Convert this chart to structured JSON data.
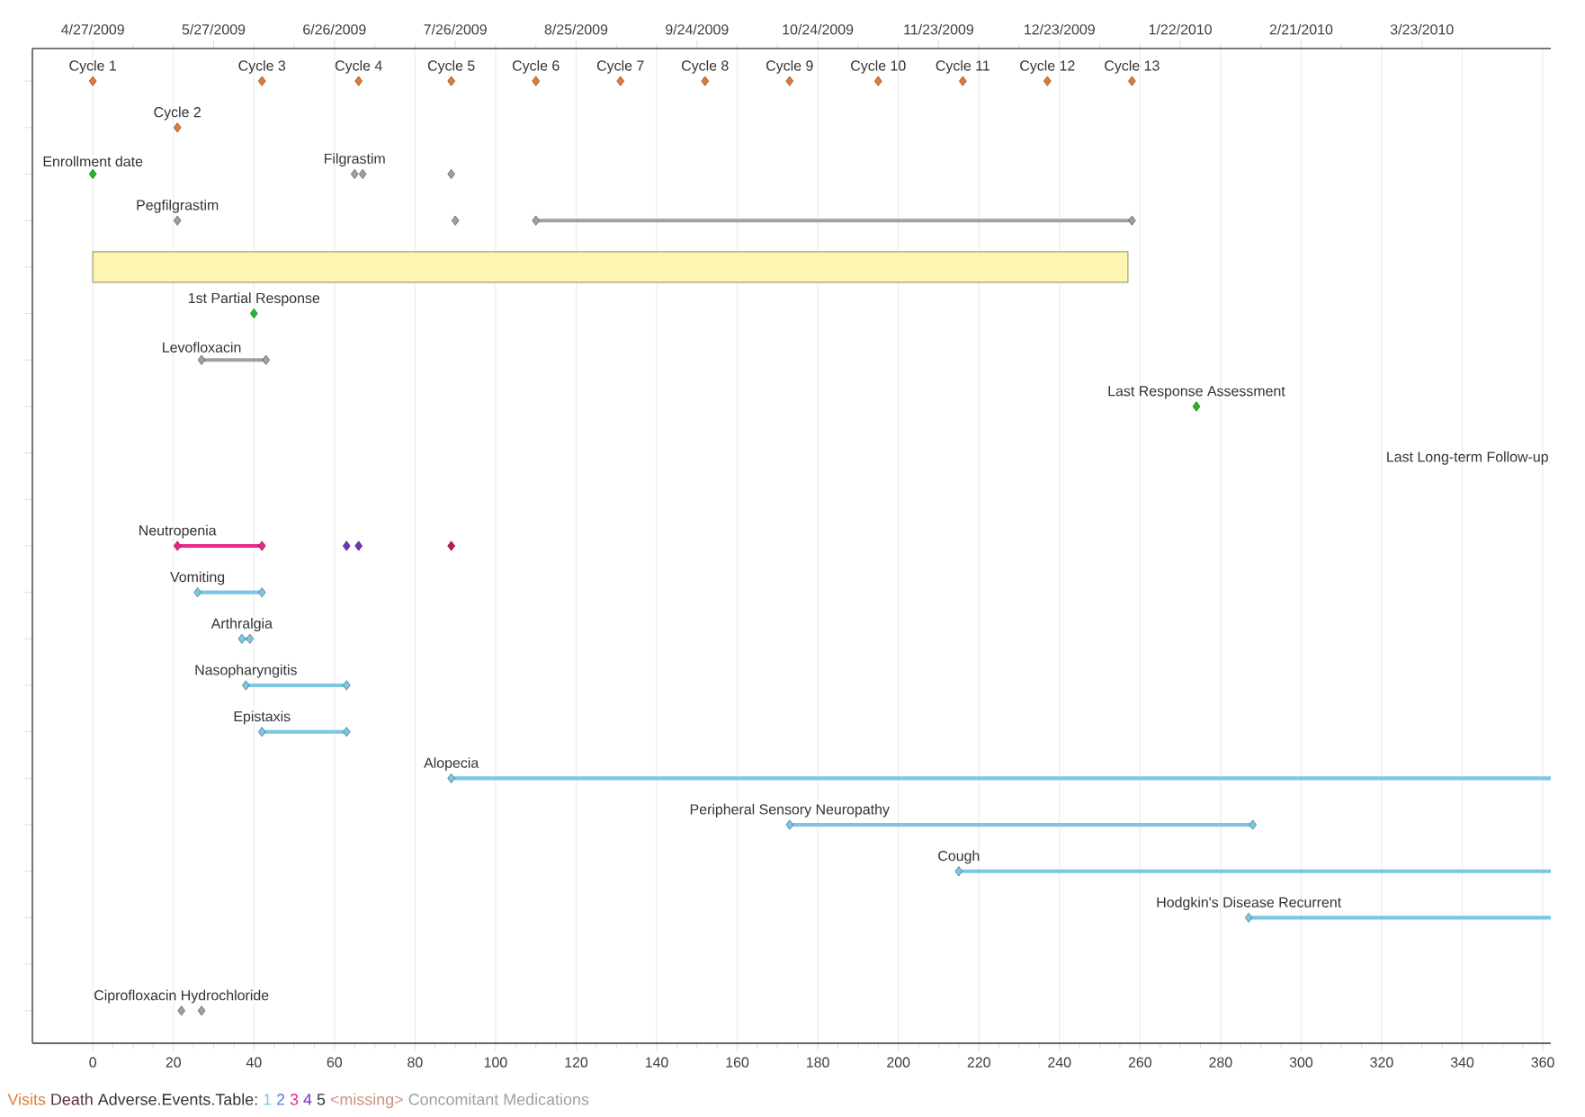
{
  "chart_data": {
    "type": "scatter",
    "orientation": "horizontal",
    "marker": "diamond",
    "grid": "x",
    "legend": "bottom left",
    "legend_title": "Adverse.Events.Table:",
    "categories": [
      null,
      null,
      null,
      null,
      null,
      null,
      null,
      null,
      null,
      null,
      null,
      null,
      null,
      null,
      null,
      null,
      null,
      null,
      null,
      null,
      null
    ],
    "xlim": [
      -15,
      362
    ],
    "xticks": [
      0,
      20,
      40,
      60,
      80,
      100,
      120,
      140,
      160,
      180,
      200,
      220,
      240,
      260,
      280,
      300,
      320,
      340,
      360
    ],
    "x2lim": [
      "2009-04-12",
      "2010-04-24"
    ],
    "x2ticks": [
      {
        "value": "2009-04-27",
        "label": "4/27/2009"
      },
      {
        "value": "2009-05-27",
        "label": "5/27/2009"
      },
      {
        "value": "2009-06-26",
        "label": "6/26/2009"
      },
      {
        "value": "2009-07-26",
        "label": "7/26/2009"
      },
      {
        "value": "2009-08-25",
        "label": "8/25/2009"
      },
      {
        "value": "2009-09-24",
        "label": "9/24/2009"
      },
      {
        "value": "2009-10-24",
        "label": "10/24/2009"
      },
      {
        "value": "2009-11-23",
        "label": "11/23/2009"
      },
      {
        "value": "2009-12-23",
        "label": "12/23/2009"
      },
      {
        "value": "2010-01-22",
        "label": "1/22/2010"
      },
      {
        "value": "2010-02-21",
        "label": "2/21/2010"
      },
      {
        "value": "2010-03-23",
        "label": "3/23/2010"
      }
    ],
    "annotations": [
      "Last Long-term Follow-up",
      "1st Partial Response"
    ],
    "series": [
      {
        "name": "Visits",
        "color": "#e07b39",
        "values": [
          0,
          21,
          null,
          null,
          null,
          null,
          null,
          null,
          null,
          null,
          null,
          null,
          null,
          null,
          null,
          null,
          null,
          null,
          null,
          null,
          null
        ],
        "value_labels": [
          "Cycle 1",
          "Cycle 2",
          null,
          null,
          null,
          null,
          null,
          null,
          null,
          null,
          null,
          null,
          null,
          null,
          null,
          null,
          null,
          null,
          null,
          null,
          null
        ]
      },
      {
        "name": "Death",
        "color": "#5b2c3f",
        "values": [
          null,
          null,
          null,
          null,
          null,
          null,
          null,
          null,
          null,
          null,
          null,
          null,
          null,
          null,
          null,
          null,
          null,
          null,
          null,
          null,
          null
        ]
      },
      {
        "name": "1",
        "type": "bar",
        "color": "#7cc6e4",
        "base": [
          null,
          null,
          null,
          null,
          null,
          null,
          null,
          null,
          null,
          null,
          null,
          26,
          37,
          38,
          42,
          89,
          173,
          215,
          287,
          null,
          null
        ],
        "values": [
          null,
          null,
          null,
          null,
          null,
          null,
          null,
          null,
          null,
          null,
          null,
          16,
          2,
          25,
          21,
          273,
          115,
          147,
          75,
          null,
          null
        ],
        "value_labels": [
          null,
          null,
          null,
          null,
          null,
          null,
          null,
          null,
          null,
          null,
          null,
          "Vomiting",
          "Arthralgia",
          "Nasopharyngitis",
          "Epistaxis",
          "Alopecia",
          "Peripheral Sensory Neuropathy",
          "Cough",
          "Hodgkin's Disease Recurrent",
          null,
          null
        ]
      },
      {
        "name": "2",
        "color": "#4f86e0",
        "values": [
          null,
          null,
          null,
          null,
          null,
          null,
          null,
          null,
          null,
          null,
          null,
          null,
          null,
          null,
          null,
          null,
          null,
          null,
          null,
          null,
          null
        ]
      },
      {
        "name": "3",
        "type": "bar",
        "color": "#e8288a",
        "base": [
          null,
          null,
          null,
          null,
          null,
          null,
          null,
          null,
          null,
          null,
          21,
          null,
          null,
          null,
          null,
          null,
          null,
          null,
          null,
          null,
          null
        ],
        "values": [
          null,
          null,
          null,
          null,
          null,
          null,
          null,
          null,
          null,
          null,
          21,
          null,
          null,
          null,
          null,
          null,
          null,
          null,
          null,
          null,
          null
        ],
        "value_labels": [
          null,
          null,
          null,
          null,
          null,
          null,
          null,
          null,
          null,
          null,
          "Neutropenia",
          null,
          null,
          null,
          null,
          null,
          null,
          null,
          null,
          null,
          null
        ]
      },
      {
        "name": "4",
        "color": "#7b2fbe",
        "values": [
          null,
          null,
          null,
          null,
          null,
          null,
          null,
          null,
          null,
          null,
          63,
          null,
          null,
          null,
          null,
          null,
          null,
          null,
          null,
          null,
          null
        ]
      },
      {
        "name": "5",
        "color": "#333333",
        "values": [
          null,
          null,
          null,
          null,
          null,
          null,
          null,
          null,
          null,
          null,
          null,
          null,
          null,
          null,
          null,
          null,
          null,
          null,
          null,
          null,
          null
        ]
      },
      {
        "name": "<missing>",
        "color": "#c9937a",
        "values": [
          null,
          null,
          null,
          null,
          null,
          null,
          null,
          null,
          null,
          null,
          null,
          null,
          null,
          null,
          null,
          null,
          null,
          null,
          null,
          null,
          null
        ]
      },
      {
        "name": "Concomitant Medications",
        "color": "#a0a0a0",
        "values": [
          null,
          null,
          65,
          21,
          null,
          null,
          null,
          null,
          null,
          null,
          null,
          null,
          null,
          null,
          null,
          null,
          null,
          null,
          null,
          null,
          22
        ],
        "value_labels": [
          null,
          null,
          "Filgrastim",
          "Pegfilgrastim",
          null,
          null,
          null,
          null,
          null,
          null,
          null,
          null,
          null,
          null,
          null,
          null,
          null,
          null,
          null,
          null,
          "Ciprofloxacin Hydrochloride"
        ]
      },
      {
        "color": "#e07b39",
        "values": [
          42,
          null,
          null,
          null,
          null,
          null,
          null,
          null,
          null,
          null,
          null,
          null,
          null,
          null,
          null,
          null,
          null,
          null,
          null,
          null,
          null
        ],
        "value_labels": [
          "Cycle 3",
          null,
          null,
          null,
          null,
          null,
          null,
          null,
          null,
          null,
          null,
          null,
          null,
          null,
          null,
          null,
          null,
          null,
          null,
          null,
          null
        ]
      },
      {
        "color": "#e07b39",
        "values": [
          66,
          null,
          null,
          null,
          null,
          null,
          null,
          null,
          null,
          null,
          null,
          null,
          null,
          null,
          null,
          null,
          null,
          null,
          null,
          null,
          null
        ],
        "value_labels": [
          "Cycle 4",
          null,
          null,
          null,
          null,
          null,
          null,
          null,
          null,
          null,
          null,
          null,
          null,
          null,
          null,
          null,
          null,
          null,
          null,
          null,
          null
        ]
      },
      {
        "color": "#e07b39",
        "values": [
          89,
          null,
          null,
          null,
          null,
          null,
          null,
          null,
          null,
          null,
          null,
          null,
          null,
          null,
          null,
          null,
          null,
          null,
          null,
          null,
          null
        ],
        "value_labels": [
          "Cycle 5",
          null,
          null,
          null,
          null,
          null,
          null,
          null,
          null,
          null,
          null,
          null,
          null,
          null,
          null,
          null,
          null,
          null,
          null,
          null,
          null
        ]
      },
      {
        "color": "#e07b39",
        "values": [
          110,
          null,
          null,
          null,
          null,
          null,
          null,
          null,
          null,
          null,
          null,
          null,
          null,
          null,
          null,
          null,
          null,
          null,
          null,
          null,
          null
        ],
        "value_labels": [
          "Cycle 6",
          null,
          null,
          null,
          null,
          null,
          null,
          null,
          null,
          null,
          null,
          null,
          null,
          null,
          null,
          null,
          null,
          null,
          null,
          null,
          null
        ]
      },
      {
        "color": "#e07b39",
        "values": [
          131,
          null,
          null,
          null,
          null,
          null,
          null,
          null,
          null,
          null,
          null,
          null,
          null,
          null,
          null,
          null,
          null,
          null,
          null,
          null,
          null
        ],
        "value_labels": [
          "Cycle 7",
          null,
          null,
          null,
          null,
          null,
          null,
          null,
          null,
          null,
          null,
          null,
          null,
          null,
          null,
          null,
          null,
          null,
          null,
          null,
          null
        ]
      },
      {
        "color": "#e07b39",
        "values": [
          152,
          null,
          null,
          null,
          null,
          null,
          null,
          null,
          null,
          null,
          null,
          null,
          null,
          null,
          null,
          null,
          null,
          null,
          null,
          null,
          null
        ],
        "value_labels": [
          "Cycle 8",
          null,
          null,
          null,
          null,
          null,
          null,
          null,
          null,
          null,
          null,
          null,
          null,
          null,
          null,
          null,
          null,
          null,
          null,
          null,
          null
        ]
      },
      {
        "color": "#e07b39",
        "values": [
          173,
          null,
          null,
          null,
          null,
          null,
          null,
          null,
          null,
          null,
          null,
          null,
          null,
          null,
          null,
          null,
          null,
          null,
          null,
          null,
          null
        ],
        "value_labels": [
          "Cycle 9",
          null,
          null,
          null,
          null,
          null,
          null,
          null,
          null,
          null,
          null,
          null,
          null,
          null,
          null,
          null,
          null,
          null,
          null,
          null,
          null
        ]
      },
      {
        "color": "#e07b39",
        "values": [
          195,
          null,
          null,
          null,
          null,
          null,
          null,
          null,
          null,
          null,
          null,
          null,
          null,
          null,
          null,
          null,
          null,
          null,
          null,
          null,
          null
        ],
        "value_labels": [
          "Cycle 10",
          null,
          null,
          null,
          null,
          null,
          null,
          null,
          null,
          null,
          null,
          null,
          null,
          null,
          null,
          null,
          null,
          null,
          null,
          null,
          null
        ]
      },
      {
        "color": "#e07b39",
        "values": [
          216,
          null,
          null,
          null,
          null,
          null,
          null,
          null,
          null,
          null,
          null,
          null,
          null,
          null,
          null,
          null,
          null,
          null,
          null,
          null,
          null
        ],
        "value_labels": [
          "Cycle 11",
          null,
          null,
          null,
          null,
          null,
          null,
          null,
          null,
          null,
          null,
          null,
          null,
          null,
          null,
          null,
          null,
          null,
          null,
          null,
          null
        ]
      },
      {
        "color": "#e07b39",
        "values": [
          237,
          null,
          null,
          null,
          null,
          null,
          null,
          null,
          null,
          null,
          null,
          null,
          null,
          null,
          null,
          null,
          null,
          null,
          null,
          null,
          null
        ],
        "value_labels": [
          "Cycle 12",
          null,
          null,
          null,
          null,
          null,
          null,
          null,
          null,
          null,
          null,
          null,
          null,
          null,
          null,
          null,
          null,
          null,
          null,
          null,
          null
        ]
      },
      {
        "color": "#e07b39",
        "values": [
          258,
          null,
          null,
          null,
          null,
          null,
          null,
          null,
          null,
          null,
          null,
          null,
          null,
          null,
          null,
          null,
          null,
          null,
          null,
          null,
          null
        ],
        "value_labels": [
          "Cycle 13",
          null,
          null,
          null,
          null,
          null,
          null,
          null,
          null,
          null,
          null,
          null,
          null,
          null,
          null,
          null,
          null,
          null,
          null,
          null,
          null
        ]
      },
      {
        "color": "#7b2fbe",
        "values": [
          null,
          null,
          null,
          null,
          null,
          null,
          null,
          null,
          null,
          null,
          66,
          null,
          null,
          null,
          null,
          null,
          null,
          null,
          null,
          null,
          null
        ]
      },
      {
        "color": "#c2185b",
        "values": [
          null,
          null,
          null,
          null,
          null,
          null,
          null,
          null,
          null,
          null,
          89,
          null,
          null,
          null,
          null,
          null,
          null,
          null,
          null,
          null,
          null
        ]
      },
      {
        "color": "#a0a0a0",
        "values": [
          null,
          null,
          67,
          90,
          null,
          null,
          null,
          null,
          null,
          null,
          null,
          null,
          null,
          null,
          null,
          null,
          null,
          null,
          null,
          null,
          27
        ]
      },
      {
        "color": "#a0a0a0",
        "values": [
          null,
          null,
          89,
          null,
          null,
          null,
          null,
          null,
          null,
          null,
          null,
          null,
          null,
          null,
          null,
          null,
          null,
          null,
          null,
          null,
          null
        ]
      },
      {
        "type": "bar",
        "color": "#a0a0a0",
        "base": [
          null,
          null,
          null,
          110,
          null,
          null,
          27,
          null,
          null,
          null,
          null,
          null,
          null,
          null,
          null,
          null,
          null,
          null,
          null,
          null,
          null
        ],
        "values": [
          null,
          null,
          null,
          148,
          null,
          null,
          16,
          null,
          null,
          null,
          null,
          null,
          null,
          null,
          null,
          null,
          null,
          null,
          null,
          null,
          null
        ],
        "value_labels": [
          null,
          null,
          null,
          null,
          null,
          null,
          "Levofloxacin",
          null,
          null,
          null,
          null,
          null,
          null,
          null,
          null,
          null,
          null,
          null,
          null,
          null,
          null
        ]
      },
      {
        "type": "bar",
        "marker": "none",
        "color": "#fcf6b1",
        "base": [
          null,
          null,
          null,
          null,
          0,
          null,
          null,
          null,
          null,
          null,
          null,
          null,
          null,
          null,
          null,
          null,
          null,
          null,
          null,
          null,
          null
        ],
        "values": [
          null,
          null,
          null,
          null,
          257,
          null,
          null,
          null,
          null,
          null,
          null,
          null,
          null,
          null,
          null,
          null,
          null,
          null,
          null,
          null,
          null
        ]
      },
      {
        "color": "#7cc6e4",
        "values": [
          null,
          null,
          null,
          null,
          null,
          null,
          null,
          null,
          null,
          null,
          null,
          26,
          37,
          38,
          42,
          89,
          173,
          215,
          287,
          null,
          null
        ]
      },
      {
        "color": "#e8288a",
        "values": [
          null,
          null,
          null,
          null,
          null,
          null,
          null,
          null,
          null,
          null,
          21,
          null,
          null,
          null,
          null,
          null,
          null,
          null,
          null,
          null,
          null
        ]
      },
      {
        "color": "#a0a0a0",
        "values": [
          null,
          null,
          null,
          110,
          null,
          null,
          27,
          null,
          null,
          null,
          null,
          null,
          null,
          null,
          null,
          null,
          null,
          null,
          null,
          null,
          null
        ]
      },
      {
        "color": "#7cc6e4",
        "values": [
          null,
          null,
          null,
          null,
          null,
          null,
          null,
          null,
          null,
          null,
          null,
          42,
          39,
          63,
          63,
          null,
          288,
          null,
          null,
          null,
          null
        ]
      },
      {
        "color": "#e8288a",
        "values": [
          null,
          null,
          null,
          null,
          null,
          null,
          null,
          null,
          null,
          null,
          42,
          null,
          null,
          null,
          null,
          null,
          null,
          null,
          null,
          null,
          null
        ]
      },
      {
        "color": "#a0a0a0",
        "values": [
          null,
          null,
          null,
          258,
          null,
          null,
          43,
          null,
          null,
          null,
          null,
          null,
          null,
          null,
          null,
          null,
          null,
          null,
          null,
          null,
          null
        ]
      },
      {
        "color": "#22b822",
        "values": [
          null,
          null,
          0,
          null,
          null,
          40,
          null,
          274,
          null,
          null,
          null,
          null,
          null,
          null,
          null,
          null,
          null,
          null,
          null,
          null,
          null
        ],
        "value_labels": [
          null,
          null,
          "Enrollment date",
          null,
          null,
          null,
          null,
          "Last Response Assessment",
          null,
          null,
          null,
          null,
          null,
          null,
          null,
          null,
          null,
          null,
          null,
          null,
          null
        ]
      }
    ]
  }
}
